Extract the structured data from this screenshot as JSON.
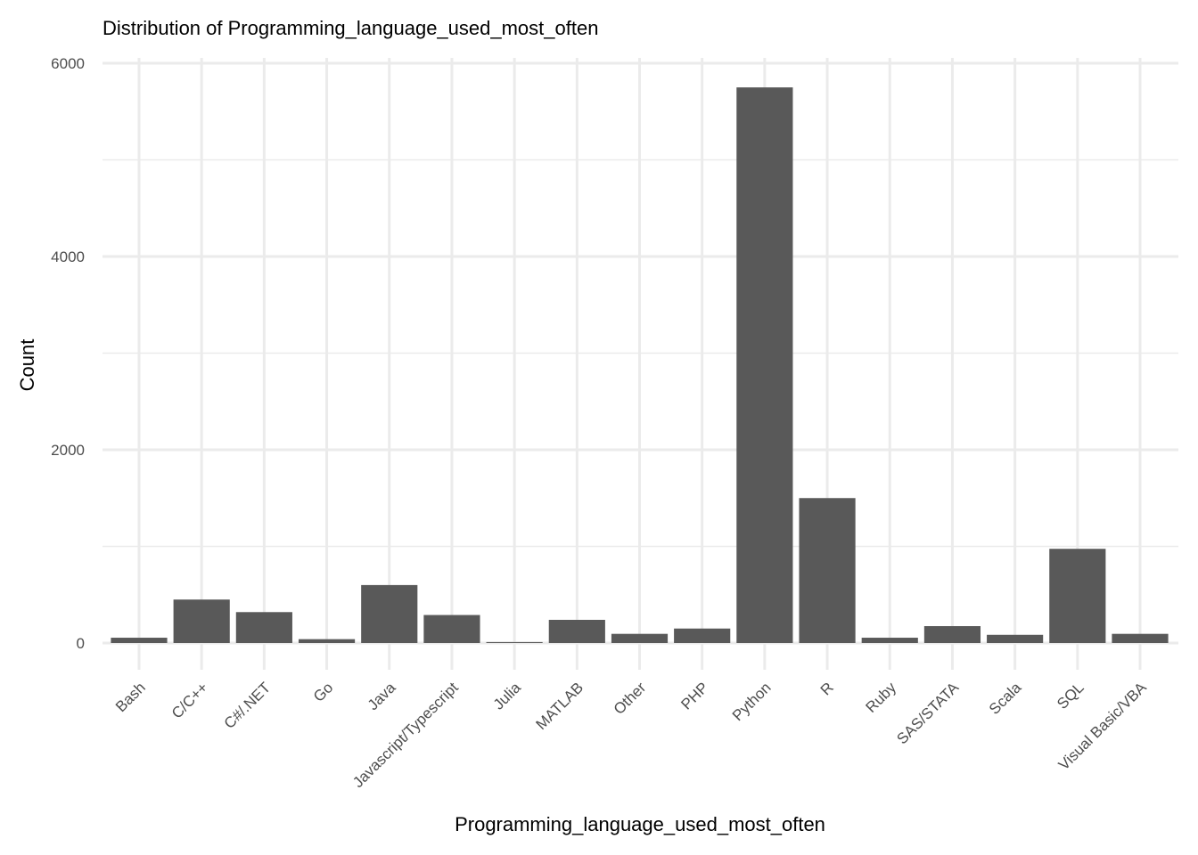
{
  "chart_data": {
    "type": "bar",
    "title": "Distribution of Programming_language_used_most_often",
    "xlabel": "Programming_language_used_most_often",
    "ylabel": "Count",
    "categories": [
      "Bash",
      "C/C++",
      "C#/.NET",
      "Go",
      "Java",
      "Javascript/Typescript",
      "Julia",
      "MATLAB",
      "Other",
      "PHP",
      "Python",
      "R",
      "Ruby",
      "SAS/STATA",
      "Scala",
      "SQL",
      "Visual Basic/VBA"
    ],
    "values": [
      55,
      450,
      320,
      40,
      600,
      290,
      10,
      240,
      95,
      150,
      5750,
      1500,
      55,
      175,
      85,
      975,
      95
    ],
    "ylim": [
      0,
      6000
    ],
    "yticks": [
      0,
      2000,
      4000,
      6000
    ],
    "grid": true,
    "legend": "none",
    "bar_color": "#595959",
    "grid_color": "#ebebeb"
  }
}
